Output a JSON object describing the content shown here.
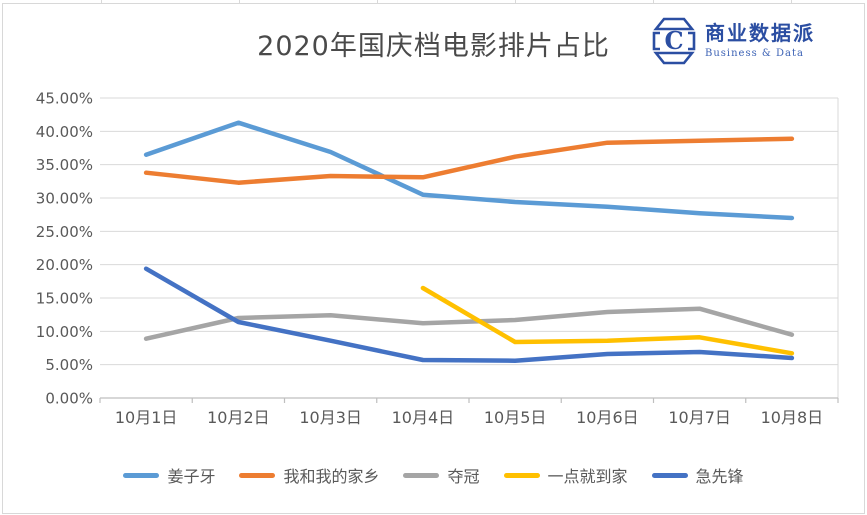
{
  "window": {
    "kind": "excel-chart-object"
  },
  "header": {
    "title": "2020年国庆档电影排片占比",
    "logo": {
      "icon": "hexagon-c-logo",
      "name": "商业数据派",
      "tagline": "Business & Data",
      "color": "#2b4ea2"
    }
  },
  "chart_data": {
    "type": "line",
    "title": "2020年国庆档电影排片占比",
    "categories": [
      "10月1日",
      "10月2日",
      "10月3日",
      "10月4日",
      "10月5日",
      "10月6日",
      "10月7日",
      "10月8日"
    ],
    "series": [
      {
        "name": "姜子牙",
        "color": "#5B9BD5",
        "values": [
          36.5,
          41.3,
          36.9,
          30.5,
          29.4,
          28.7,
          27.7,
          27.0
        ]
      },
      {
        "name": "我和我的家乡",
        "color": "#ED7D31",
        "values": [
          33.8,
          32.3,
          33.3,
          33.1,
          36.2,
          38.3,
          38.6,
          38.9
        ]
      },
      {
        "name": "夺冠",
        "color": "#A5A5A5",
        "values": [
          8.9,
          12.0,
          12.4,
          11.2,
          11.7,
          12.9,
          13.4,
          9.5
        ]
      },
      {
        "name": "一点就到家",
        "color": "#FFC000",
        "values": [
          null,
          null,
          null,
          16.5,
          8.4,
          8.6,
          9.1,
          6.7
        ]
      },
      {
        "name": "急先锋",
        "color": "#4472C4",
        "values": [
          19.4,
          11.4,
          8.6,
          5.7,
          5.6,
          6.6,
          6.9,
          6.0
        ]
      }
    ],
    "y_axis": {
      "min": 0,
      "max": 45,
      "step": 5,
      "tick_labels": [
        "45.00%",
        "40.00%",
        "35.00%",
        "30.00%",
        "25.00%",
        "20.00%",
        "15.00%",
        "10.00%",
        "5.00%",
        "0.00%"
      ]
    },
    "x_axis": {
      "tick_labels": [
        "10月1日",
        "10月2日",
        "10月3日",
        "10月4日",
        "10月5日",
        "10月6日",
        "10月7日",
        "10月8日"
      ]
    },
    "grid": true,
    "legend_position": "bottom",
    "line_width": 4.5,
    "gridline_color": "#D9D9D9",
    "axis_line_color": "#BFBFBF",
    "axis_text_color": "#595959"
  }
}
